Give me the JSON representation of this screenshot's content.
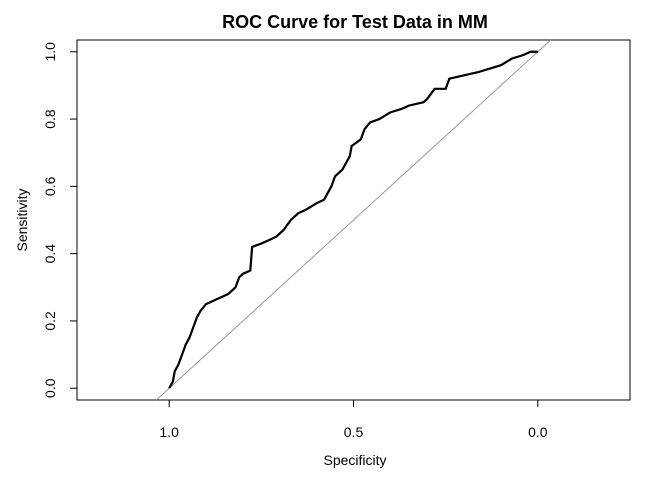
{
  "chart_data": {
    "type": "line",
    "title": "ROC Curve for Test Data in MM",
    "xlabel": "Specificity",
    "ylabel": "Sensitivity",
    "x_reversed": true,
    "xlim": [
      1.25,
      -0.25
    ],
    "ylim": [
      -0.035,
      1.035
    ],
    "x_ticks": [
      1.0,
      0.5,
      0.0
    ],
    "x_tick_labels": [
      "1.0",
      "0.5",
      "0.0"
    ],
    "y_ticks": [
      0.0,
      0.2,
      0.4,
      0.6,
      0.8,
      1.0
    ],
    "y_tick_labels": [
      "0.0",
      "0.2",
      "0.4",
      "0.6",
      "0.8",
      "1.0"
    ],
    "grid": false,
    "colors": {
      "curve": "#000000",
      "diagonal": "#999999"
    },
    "reference_line": {
      "intercept": 1,
      "slope": 1
    },
    "series": [
      {
        "points": [
          [
            1.0,
            0.0
          ],
          [
            0.99,
            0.02
          ],
          [
            0.985,
            0.05
          ],
          [
            0.975,
            0.07
          ],
          [
            0.965,
            0.1
          ],
          [
            0.955,
            0.13
          ],
          [
            0.945,
            0.15
          ],
          [
            0.935,
            0.18
          ],
          [
            0.925,
            0.21
          ],
          [
            0.915,
            0.23
          ],
          [
            0.9,
            0.25
          ],
          [
            0.88,
            0.26
          ],
          [
            0.86,
            0.27
          ],
          [
            0.84,
            0.28
          ],
          [
            0.82,
            0.3
          ],
          [
            0.81,
            0.33
          ],
          [
            0.8,
            0.34
          ],
          [
            0.78,
            0.35
          ],
          [
            0.775,
            0.42
          ],
          [
            0.75,
            0.43
          ],
          [
            0.73,
            0.44
          ],
          [
            0.71,
            0.45
          ],
          [
            0.69,
            0.47
          ],
          [
            0.67,
            0.5
          ],
          [
            0.65,
            0.52
          ],
          [
            0.63,
            0.53
          ],
          [
            0.6,
            0.55
          ],
          [
            0.58,
            0.56
          ],
          [
            0.57,
            0.58
          ],
          [
            0.56,
            0.6
          ],
          [
            0.55,
            0.63
          ],
          [
            0.53,
            0.65
          ],
          [
            0.52,
            0.67
          ],
          [
            0.51,
            0.69
          ],
          [
            0.505,
            0.72
          ],
          [
            0.48,
            0.74
          ],
          [
            0.47,
            0.77
          ],
          [
            0.455,
            0.79
          ],
          [
            0.43,
            0.8
          ],
          [
            0.4,
            0.82
          ],
          [
            0.37,
            0.83
          ],
          [
            0.35,
            0.84
          ],
          [
            0.31,
            0.85
          ],
          [
            0.3,
            0.86
          ],
          [
            0.28,
            0.89
          ],
          [
            0.25,
            0.89
          ],
          [
            0.24,
            0.92
          ],
          [
            0.2,
            0.93
          ],
          [
            0.16,
            0.94
          ],
          [
            0.13,
            0.95
          ],
          [
            0.1,
            0.96
          ],
          [
            0.07,
            0.98
          ],
          [
            0.04,
            0.99
          ],
          [
            0.02,
            1.0
          ],
          [
            0.0,
            1.0
          ]
        ]
      }
    ]
  }
}
